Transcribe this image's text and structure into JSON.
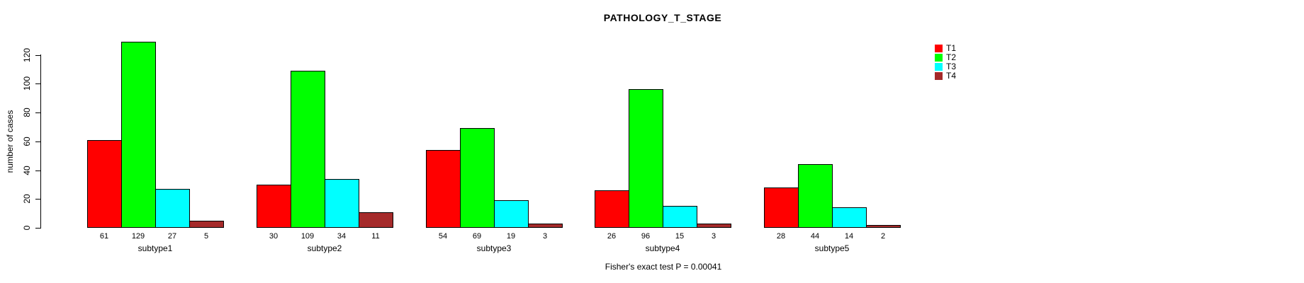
{
  "chart_data": {
    "type": "bar",
    "title": "PATHOLOGY_T_STAGE",
    "ylabel": "number of cases",
    "xlabel": "",
    "categories": [
      "subtype1",
      "subtype2",
      "subtype3",
      "subtype4",
      "subtype5"
    ],
    "series": [
      {
        "name": "T1",
        "color": "#FF0000",
        "values": [
          61,
          30,
          54,
          26,
          28
        ]
      },
      {
        "name": "T2",
        "color": "#00FF00",
        "values": [
          129,
          109,
          69,
          96,
          44
        ]
      },
      {
        "name": "T3",
        "color": "#00FFFF",
        "values": [
          27,
          34,
          19,
          15,
          14
        ]
      },
      {
        "name": "T4",
        "color": "#A52A2A",
        "values": [
          5,
          11,
          3,
          3,
          2
        ]
      }
    ],
    "bar_value_labels_shown": true,
    "yticks": [
      0,
      20,
      40,
      60,
      80,
      100,
      120
    ],
    "ylim": [
      0,
      130
    ],
    "grid": false,
    "legend_position": "right",
    "legend_frame": false,
    "footnote": "Fisher's exact test P = 0.00041",
    "axis_color": "#000000",
    "bar_border_color": "#000000",
    "background_color": "#FFFFFF"
  }
}
